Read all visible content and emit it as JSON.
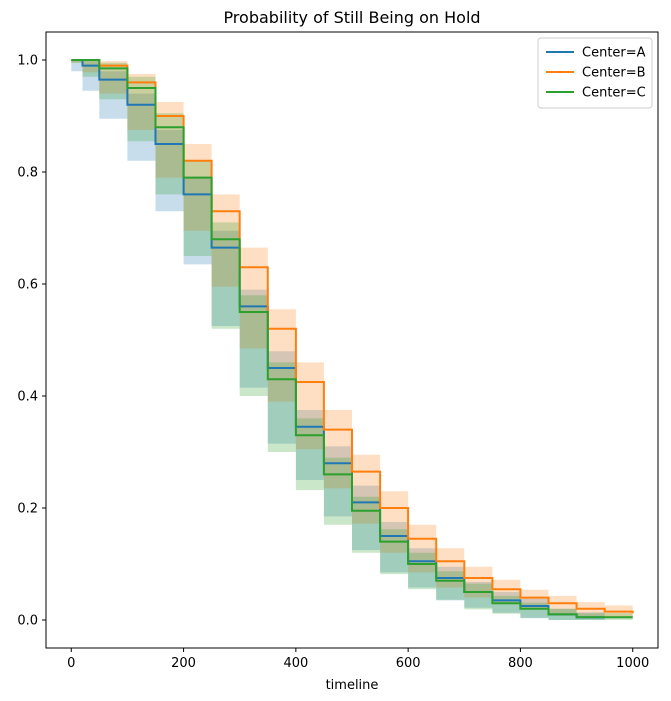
{
  "chart_data": {
    "type": "line",
    "title": "Probability of Still Being on Hold",
    "xlabel": "timeline",
    "ylabel": "",
    "xlim": [
      -45,
      1045
    ],
    "ylim": [
      -0.05,
      1.05
    ],
    "xticks": [
      0,
      200,
      400,
      600,
      800,
      1000
    ],
    "yticks": [
      0.0,
      0.2,
      0.4,
      0.6,
      0.8,
      1.0
    ],
    "x_tick_labels": [
      "0",
      "200",
      "400",
      "600",
      "800",
      "1000"
    ],
    "y_tick_labels": [
      "0.0",
      "0.2",
      "0.4",
      "0.6",
      "0.8",
      "1.0"
    ],
    "grid": false,
    "legend_position": "top-right",
    "colors": {
      "A": "#1f77b4",
      "B": "#ff7f0e",
      "C": "#2ca02c"
    },
    "series": [
      {
        "name": "Center=A",
        "x": [
          0,
          20,
          50,
          100,
          150,
          200,
          250,
          300,
          350,
          400,
          450,
          500,
          550,
          600,
          650,
          700,
          750,
          800,
          850,
          900,
          950
        ],
        "y": [
          1.0,
          0.99,
          0.965,
          0.92,
          0.85,
          0.76,
          0.665,
          0.56,
          0.45,
          0.345,
          0.28,
          0.21,
          0.15,
          0.105,
          0.075,
          0.05,
          0.035,
          0.025,
          0.01,
          0.005,
          0.005
        ],
        "ci_lower": [
          1.0,
          0.98,
          0.945,
          0.895,
          0.82,
          0.73,
          0.635,
          0.525,
          0.415,
          0.315,
          0.25,
          0.185,
          0.125,
          0.085,
          0.058,
          0.035,
          0.022,
          0.013,
          0.003,
          0.0,
          0.0
        ],
        "ci_upper": [
          1.0,
          0.998,
          0.98,
          0.94,
          0.875,
          0.79,
          0.695,
          0.59,
          0.48,
          0.375,
          0.31,
          0.24,
          0.175,
          0.128,
          0.095,
          0.068,
          0.05,
          0.038,
          0.02,
          0.014,
          0.014
        ]
      },
      {
        "name": "Center=B",
        "x": [
          0,
          20,
          50,
          100,
          150,
          200,
          250,
          300,
          350,
          400,
          450,
          500,
          550,
          600,
          650,
          700,
          750,
          800,
          850,
          900,
          950,
          1000
        ],
        "y": [
          1.0,
          1.0,
          0.99,
          0.96,
          0.9,
          0.82,
          0.73,
          0.63,
          0.52,
          0.425,
          0.34,
          0.265,
          0.2,
          0.145,
          0.105,
          0.075,
          0.055,
          0.04,
          0.03,
          0.02,
          0.015,
          0.012
        ],
        "ci_lower": [
          1.0,
          0.995,
          0.978,
          0.94,
          0.875,
          0.79,
          0.695,
          0.595,
          0.485,
          0.39,
          0.305,
          0.235,
          0.172,
          0.12,
          0.085,
          0.058,
          0.04,
          0.028,
          0.018,
          0.01,
          0.006,
          0.004
        ],
        "ci_upper": [
          1.0,
          1.0,
          0.998,
          0.975,
          0.925,
          0.85,
          0.76,
          0.665,
          0.555,
          0.46,
          0.375,
          0.295,
          0.23,
          0.17,
          0.128,
          0.095,
          0.072,
          0.054,
          0.043,
          0.032,
          0.026,
          0.024
        ]
      },
      {
        "name": "Center=C",
        "x": [
          0,
          20,
          50,
          100,
          150,
          200,
          250,
          300,
          350,
          400,
          450,
          500,
          550,
          600,
          650,
          700,
          750,
          800,
          850,
          900,
          950,
          1000
        ],
        "y": [
          1.0,
          1.0,
          0.985,
          0.95,
          0.88,
          0.79,
          0.68,
          0.55,
          0.43,
          0.33,
          0.26,
          0.195,
          0.14,
          0.1,
          0.07,
          0.05,
          0.03,
          0.02,
          0.01,
          0.005,
          0.005,
          0.005
        ],
        "ci_lower": [
          1.0,
          0.995,
          0.97,
          0.93,
          0.855,
          0.76,
          0.65,
          0.52,
          0.4,
          0.3,
          0.232,
          0.17,
          0.12,
          0.082,
          0.055,
          0.036,
          0.019,
          0.011,
          0.004,
          0.0,
          0.0,
          0.0
        ],
        "ci_upper": [
          1.0,
          1.0,
          0.995,
          0.97,
          0.905,
          0.82,
          0.71,
          0.58,
          0.46,
          0.36,
          0.29,
          0.22,
          0.162,
          0.12,
          0.087,
          0.065,
          0.043,
          0.031,
          0.02,
          0.012,
          0.012,
          0.012
        ]
      }
    ]
  }
}
